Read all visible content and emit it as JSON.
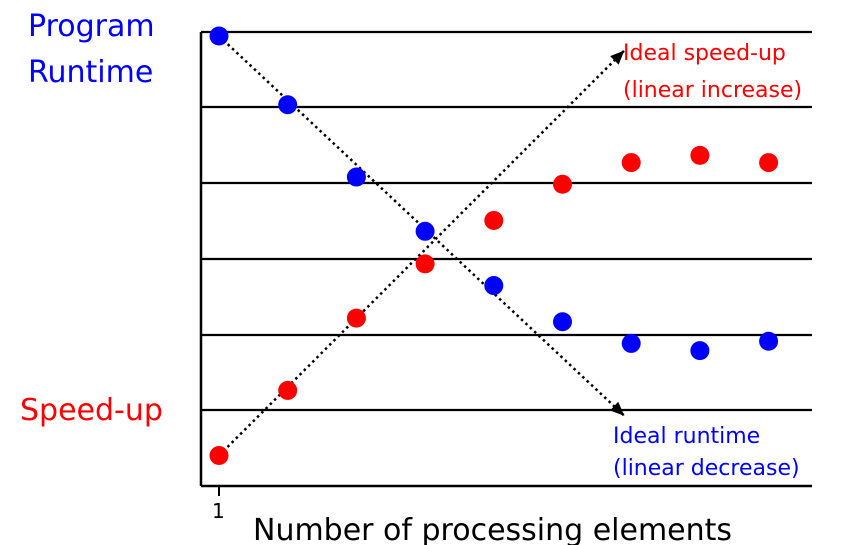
{
  "colors": {
    "runtime": "#0000ff",
    "speedup": "#ff0000",
    "axis": "#000000"
  },
  "labels": {
    "runtime_axis_line1": "Program",
    "runtime_axis_line2": "Runtime",
    "speedup_axis": "Speed-up",
    "xlabel": "Number of processing elements",
    "x_tick": "1",
    "ideal_speedup_line1": "Ideal speed-up",
    "ideal_speedup_line2": "(linear increase)",
    "ideal_runtime_line1": "Ideal runtime",
    "ideal_runtime_line2": "(linear decrease)"
  },
  "chart_data": {
    "type": "scatter",
    "title": "",
    "xlabel": "Number of processing elements",
    "ylabel": "",
    "x_tick_labels": [
      "1"
    ],
    "xlim": [
      1,
      10
    ],
    "ylim": [
      0,
      6
    ],
    "grid": true,
    "series": [
      {
        "name": "Program Runtime",
        "color": "#0000ff",
        "x": [
          1,
          2,
          3,
          4,
          5,
          6,
          7,
          8,
          9
        ],
        "y": [
          6.0,
          5.05,
          4.05,
          3.3,
          2.55,
          2.05,
          1.75,
          1.65,
          1.78
        ]
      },
      {
        "name": "Speed-up",
        "color": "#ff0000",
        "x": [
          1,
          2,
          3,
          4,
          5,
          6,
          7,
          8,
          9
        ],
        "y": [
          0.2,
          1.1,
          2.1,
          2.85,
          3.45,
          3.95,
          4.25,
          4.35,
          4.25
        ]
      }
    ],
    "ideal_lines": [
      {
        "name": "Ideal speed-up (linear increase)",
        "from": [
          1,
          0.2
        ],
        "to": [
          6.9,
          5.8
        ]
      },
      {
        "name": "Ideal runtime (linear decrease)",
        "from": [
          1,
          6.0
        ],
        "to": [
          6.9,
          0.75
        ]
      }
    ]
  }
}
